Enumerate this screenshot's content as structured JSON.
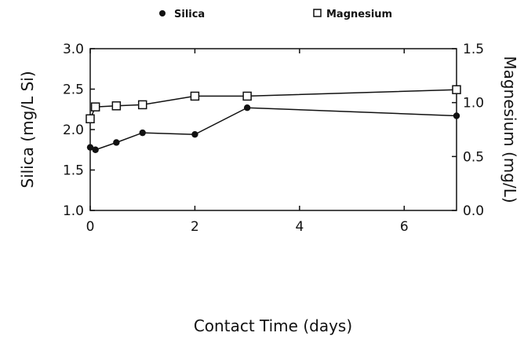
{
  "chart_data": {
    "type": "line",
    "title": "",
    "xlabel": "Contact Time (days)",
    "ylabel_left": "Silica (mg/L Si)",
    "ylabel_right": "Magnesium (mg/L)",
    "xlim": [
      0,
      7
    ],
    "ylim_left": [
      1.0,
      3.0
    ],
    "ylim_right": [
      0.0,
      1.5
    ],
    "x_ticks": [
      0,
      2,
      4,
      6
    ],
    "x_tick_labels": [
      "0",
      "2",
      "4",
      "6"
    ],
    "y_left_ticks": [
      1.0,
      1.5,
      2.0,
      2.5,
      3.0
    ],
    "y_left_tick_labels": [
      "1.0",
      "1.5",
      "2.0",
      "2.5",
      "3.0"
    ],
    "y_right_ticks": [
      0.0,
      0.5,
      1.0,
      1.5
    ],
    "y_right_tick_labels": [
      "0.0",
      "0.5",
      "1.0",
      "1.5"
    ],
    "grid": false,
    "legend_position": "top-center",
    "series": [
      {
        "name": "Silica",
        "axis": "left",
        "marker": "filled-circle",
        "x": [
          0,
          0.1,
          0.5,
          1,
          2,
          3,
          7
        ],
        "values": [
          1.78,
          1.75,
          1.84,
          1.96,
          1.94,
          2.27,
          2.17
        ]
      },
      {
        "name": "Magnesium",
        "axis": "right",
        "marker": "open-square",
        "x": [
          0,
          0.1,
          0.5,
          1,
          2,
          3,
          7
        ],
        "values": [
          0.85,
          0.96,
          0.97,
          0.98,
          1.06,
          1.06,
          1.12
        ]
      }
    ]
  }
}
